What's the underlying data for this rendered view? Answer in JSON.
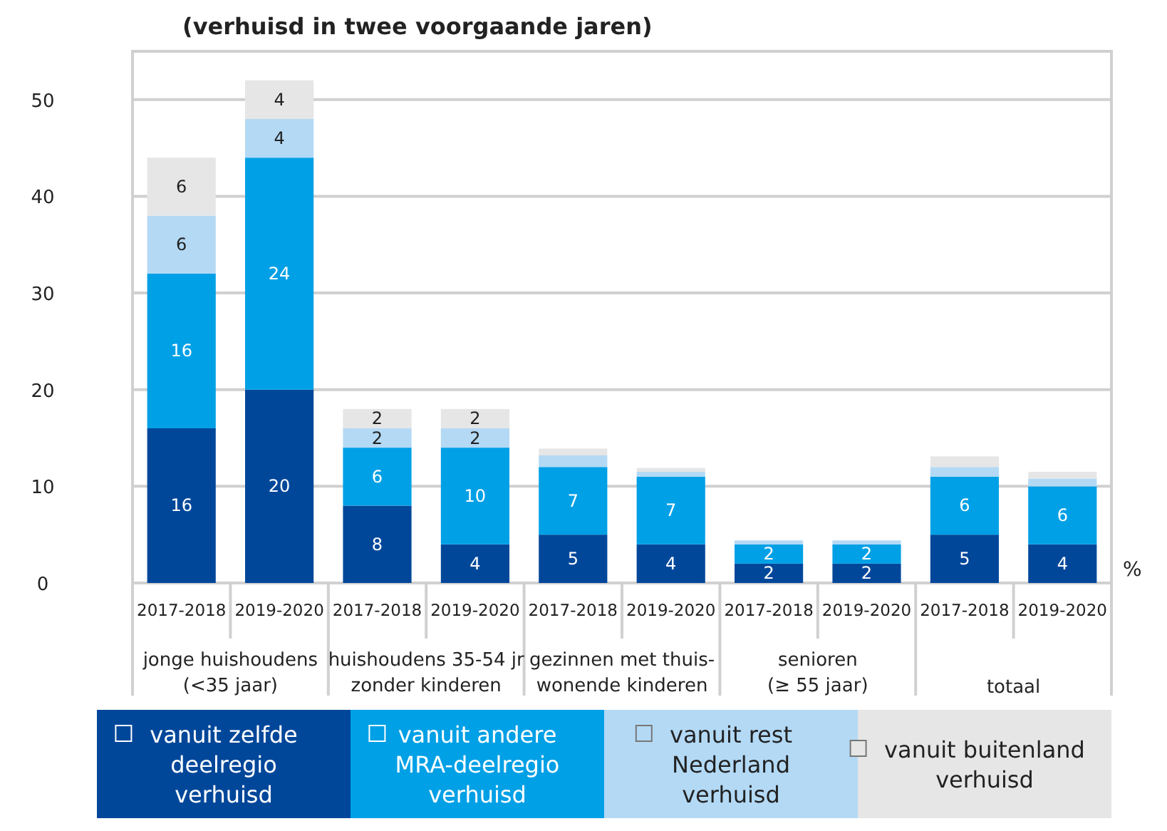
{
  "chart_data": {
    "type": "bar",
    "title": "(verhuisd in twee voorgaande jaren)",
    "ylabel": "%",
    "categories": [
      "2017-2018",
      "2019-2020",
      "2017-2018",
      "2019-2020",
      "2017-2018",
      "2019-2020",
      "2017-2018",
      "2019-2020",
      "2017-2018",
      "2019-2020"
    ],
    "annotations": [
      "jonge huishoudens\n(<35 jaar)",
      "huishoudens 35-54 jr\nzonder kinderen",
      "gezinnen met thuis-\nwonende kinderen",
      "senioren\n(≥ 55 jaar)",
      "totaal"
    ],
    "stacked": true,
    "ylim": [
      0,
      55
    ],
    "yticks": [
      0,
      10,
      20,
      30,
      40,
      50
    ],
    "grid": "y",
    "legend": "bottom",
    "series": [
      {
        "name": "vanuit zelfde deelregio verhuisd",
        "color": "#00479a",
        "values": [
          16,
          20,
          8,
          4,
          5,
          4,
          2,
          2,
          5,
          4
        ],
        "value_labels": [
          "16",
          "20",
          "8",
          "4",
          "5",
          "4",
          "2",
          "2",
          "5",
          "4"
        ]
      },
      {
        "name": "vanuit andere MRA-deelregio verhuisd",
        "color": "#00a0e6",
        "values": [
          16,
          24,
          6,
          10,
          7,
          7,
          2,
          2,
          6,
          6
        ],
        "value_labels": [
          "16",
          "24",
          "6",
          "10",
          "7",
          "7",
          "2",
          "2",
          "6",
          "6"
        ]
      },
      {
        "name": "vanuit rest Nederland verhuisd",
        "color": "#b3d9f5",
        "values": [
          6,
          4,
          2,
          2,
          1.2,
          0.5,
          0.4,
          0.4,
          1.0,
          0.8
        ],
        "value_labels": [
          "6",
          "4",
          "2",
          "2",
          null,
          null,
          null,
          null,
          null,
          null
        ]
      },
      {
        "name": "vanuit buitenland verhuisd",
        "color": "#e6e6e6",
        "values": [
          6,
          4,
          2,
          2,
          0.7,
          0.4,
          0,
          0,
          1.1,
          0.7
        ],
        "value_labels": [
          "6",
          "4",
          "2",
          "2",
          null,
          null,
          null,
          null,
          null,
          null
        ]
      }
    ]
  }
}
